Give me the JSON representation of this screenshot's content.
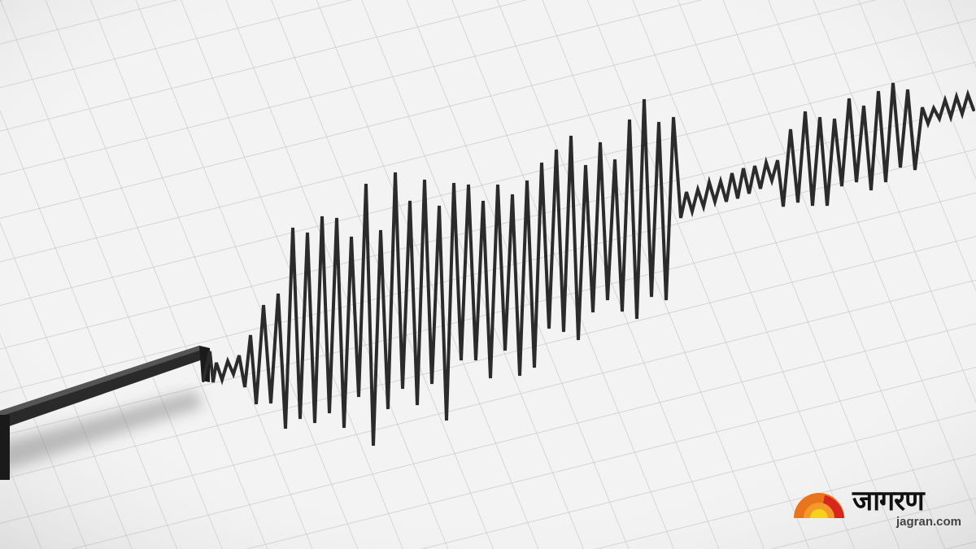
{
  "image": {
    "subject": "seismograph-trace",
    "colors": {
      "paper": "#f3f3f3",
      "grid": "#c9c9c9",
      "trace": "#2b2b2b",
      "stylus": "#1e1e1e"
    }
  },
  "watermark": {
    "brand_hindi": "जागरण",
    "site": "jagran.com",
    "icon": "rising-sun-icon",
    "colors": {
      "outer": "#e8741e",
      "inner": "#f6d21a",
      "accent": "#d8261c"
    }
  }
}
